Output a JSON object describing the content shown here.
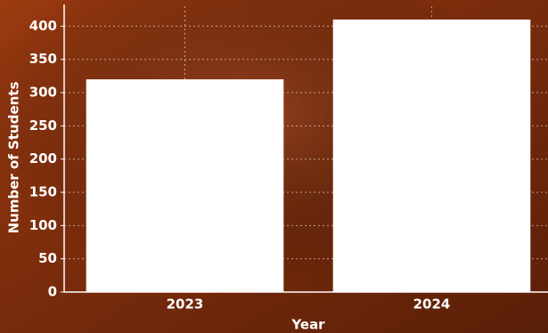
{
  "chart_data": {
    "type": "bar",
    "x_label": "Year",
    "y_label": "Number of Students",
    "categories": [
      "2023",
      "2024"
    ],
    "values": [
      320,
      410
    ],
    "color": "#ffffff",
    "ylim": [
      0,
      430
    ],
    "yticks": [
      0,
      50,
      100,
      150,
      200,
      250,
      300,
      350,
      400
    ],
    "grid": true
  }
}
